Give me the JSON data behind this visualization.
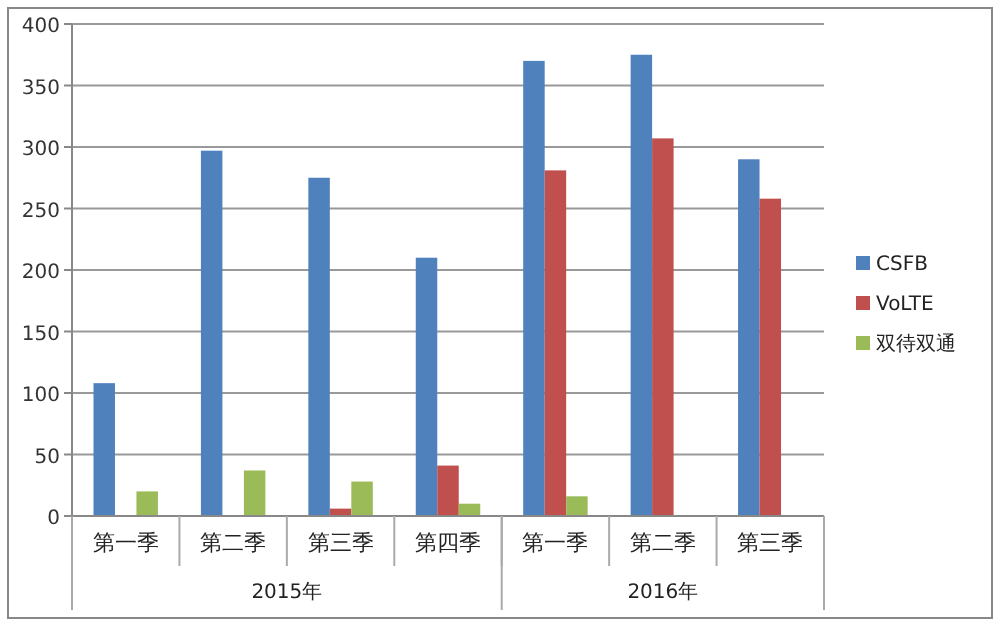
{
  "chart_data": {
    "type": "bar",
    "categories": [
      "第一季",
      "第二季",
      "第三季",
      "第四季",
      "第一季",
      "第二季",
      "第三季"
    ],
    "series": [
      {
        "name": "CSFB",
        "color": "#4f81bd",
        "values": [
          108,
          297,
          275,
          210,
          370,
          375,
          290
        ]
      },
      {
        "name": "VoLTE",
        "color": "#c0504d",
        "values": [
          0,
          0,
          6,
          41,
          281,
          307,
          258
        ]
      },
      {
        "name": "双待双通",
        "color": "#9bbb59",
        "values": [
          20,
          37,
          28,
          10,
          16,
          0,
          0
        ]
      }
    ],
    "annotations": [
      "2015年",
      "2016年"
    ],
    "ylim": [
      0,
      400
    ],
    "yticks": [
      0,
      50,
      100,
      150,
      200,
      250,
      300,
      350,
      400
    ],
    "grid": "y",
    "legend": "right"
  }
}
